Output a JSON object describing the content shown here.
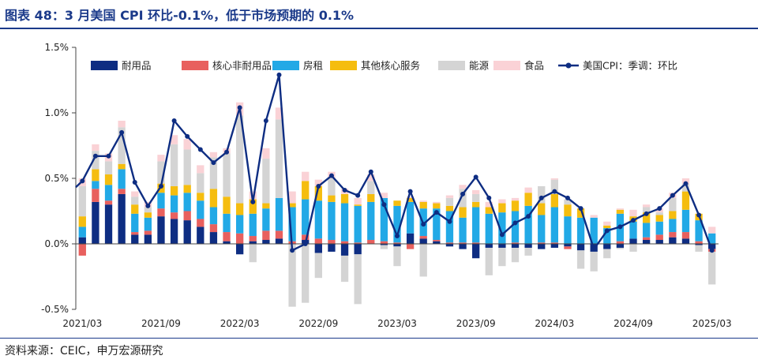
{
  "title": "图表 48：3 月美国 CPI 环比-0.1%，低于市场预期的 0.1%",
  "source": "资料来源：CEIC，申万宏源研究",
  "colors": {
    "durables": "#0e2d82",
    "nondurables": "#e8605e",
    "shelter": "#22a9e6",
    "services": "#f5bd0f",
    "energy": "#d4d4d4",
    "food": "#fad2d6",
    "cpi_line": "#0e2d82",
    "axis": "#444444"
  },
  "chart_data": {
    "type": "bar",
    "stacked": true,
    "ylabel": "",
    "ylim": [
      -0.5,
      1.5
    ],
    "yticks": [
      -0.5,
      0.0,
      0.5,
      1.0,
      1.5
    ],
    "ytick_labels": [
      "-0.5%",
      "0.0%",
      "0.5%",
      "1.0%",
      "1.5%"
    ],
    "xtick_labels": [
      "2021/03",
      "2021/09",
      "2022/03",
      "2022/09",
      "2023/03",
      "2023/09",
      "2024/03",
      "2024/09",
      "2025/03"
    ],
    "categories": [
      "2021/03",
      "2021/04",
      "2021/05",
      "2021/06",
      "2021/07",
      "2021/08",
      "2021/09",
      "2021/10",
      "2021/11",
      "2021/12",
      "2022/01",
      "2022/02",
      "2022/03",
      "2022/04",
      "2022/05",
      "2022/06",
      "2022/07",
      "2022/08",
      "2022/09",
      "2022/10",
      "2022/11",
      "2022/12",
      "2023/01",
      "2023/02",
      "2023/03",
      "2023/04",
      "2023/05",
      "2023/06",
      "2023/07",
      "2023/08",
      "2023/09",
      "2023/10",
      "2023/11",
      "2023/12",
      "2024/01",
      "2024/02",
      "2024/03",
      "2024/04",
      "2024/05",
      "2024/06",
      "2024/07",
      "2024/08",
      "2024/09",
      "2024/10",
      "2024/11",
      "2024/12",
      "2025/01",
      "2025/02",
      "2025/03"
    ],
    "legend": [
      "耐用品",
      "核心非耐用品",
      "房租",
      "其他核心服务",
      "能源",
      "食品",
      "美国CPI：季调：环比"
    ],
    "series": [
      {
        "name": "耐用品",
        "key": "durables",
        "values": [
          0.05,
          0.32,
          0.3,
          0.38,
          0.07,
          0.07,
          0.21,
          0.19,
          0.18,
          0.13,
          0.09,
          0.02,
          -0.08,
          0.02,
          0.03,
          0.04,
          0.0,
          0.03,
          -0.07,
          -0.06,
          -0.09,
          -0.08,
          0.0,
          -0.01,
          -0.02,
          0.08,
          0.04,
          0.02,
          -0.02,
          -0.04,
          -0.11,
          -0.03,
          -0.03,
          -0.03,
          -0.03,
          -0.04,
          -0.03,
          -0.02,
          -0.05,
          -0.06,
          -0.04,
          -0.03,
          0.04,
          0.03,
          0.03,
          0.05,
          0.04,
          -0.01,
          -0.04
        ]
      },
      {
        "name": "核心非耐用品",
        "key": "nondurables",
        "values": [
          -0.09,
          0.1,
          0.03,
          0.04,
          0.02,
          0.03,
          0.06,
          0.05,
          0.07,
          0.06,
          0.06,
          0.07,
          0.08,
          0.04,
          0.07,
          0.06,
          0.02,
          0.04,
          0.04,
          0.03,
          0.02,
          0.01,
          0.03,
          0.02,
          0.01,
          -0.04,
          0.02,
          0.01,
          0.01,
          0.01,
          0.01,
          0.0,
          0.0,
          0.01,
          0.0,
          0.01,
          0.01,
          -0.02,
          0.0,
          0.0,
          0.0,
          0.02,
          0.0,
          0.02,
          0.04,
          0.04,
          0.05,
          0.02,
          -0.02
        ]
      },
      {
        "name": "房租",
        "key": "shelter",
        "values": [
          0.08,
          0.06,
          0.12,
          0.15,
          0.14,
          0.1,
          0.12,
          0.13,
          0.14,
          0.14,
          0.13,
          0.14,
          0.14,
          0.17,
          0.17,
          0.25,
          0.26,
          0.27,
          0.29,
          0.29,
          0.29,
          0.28,
          0.29,
          0.33,
          0.28,
          0.24,
          0.21,
          0.24,
          0.24,
          0.19,
          0.27,
          0.23,
          0.24,
          0.24,
          0.29,
          0.21,
          0.27,
          0.21,
          0.2,
          0.2,
          0.12,
          0.21,
          0.13,
          0.11,
          0.1,
          0.1,
          0.17,
          0.16,
          0.08
        ]
      },
      {
        "name": "其他核心服务",
        "key": "services",
        "values": [
          0.08,
          0.09,
          0.08,
          0.04,
          0.07,
          0.04,
          0.07,
          0.07,
          0.06,
          0.06,
          0.14,
          0.13,
          0.09,
          0.11,
          0.04,
          0.0,
          0.03,
          0.14,
          0.11,
          0.05,
          0.07,
          0.01,
          0.06,
          0.0,
          0.04,
          0.03,
          0.05,
          0.04,
          0.04,
          0.08,
          0.04,
          0.05,
          0.07,
          0.08,
          0.1,
          0.09,
          0.1,
          0.09,
          0.07,
          0.0,
          0.02,
          0.03,
          0.04,
          0.08,
          0.05,
          0.06,
          0.14,
          0.05,
          0.0
        ]
      },
      {
        "name": "能源",
        "key": "energy",
        "values": [
          0.23,
          0.14,
          0.1,
          0.28,
          0.06,
          0.04,
          0.17,
          0.32,
          0.27,
          0.15,
          0.24,
          0.33,
          0.67,
          -0.14,
          0.34,
          0.6,
          -0.48,
          -0.45,
          -0.19,
          0.13,
          -0.2,
          -0.38,
          0.1,
          -0.03,
          -0.15,
          0.0,
          -0.25,
          0.0,
          0.06,
          0.14,
          0.06,
          -0.21,
          -0.14,
          -0.11,
          -0.06,
          0.13,
          0.11,
          0.04,
          -0.14,
          -0.15,
          -0.07,
          -0.01,
          -0.06,
          0.04,
          0.02,
          0.1,
          0.06,
          -0.05,
          -0.25
        ]
      },
      {
        "name": "食品",
        "key": "food",
        "values": [
          0.06,
          0.05,
          0.06,
          0.05,
          0.04,
          0.04,
          0.05,
          0.07,
          0.08,
          0.06,
          0.04,
          0.04,
          0.1,
          0.06,
          0.08,
          0.09,
          0.09,
          0.07,
          0.05,
          0.05,
          0.04,
          0.05,
          0.05,
          0.04,
          0.0,
          0.01,
          0.01,
          0.01,
          0.02,
          0.03,
          0.03,
          0.04,
          0.03,
          0.02,
          0.04,
          0.0,
          0.01,
          0.0,
          0.0,
          0.02,
          0.03,
          0.01,
          0.05,
          0.02,
          0.03,
          0.04,
          0.04,
          0.0,
          0.05
        ]
      },
      {
        "name": "美国CPI：季调：环比",
        "key": "cpi_line",
        "type": "line",
        "values": [
          0.48,
          0.67,
          0.67,
          0.85,
          0.47,
          0.29,
          0.44,
          0.94,
          0.82,
          0.72,
          0.62,
          0.7,
          1.04,
          0.32,
          0.94,
          1.29,
          -0.05,
          0.0,
          0.44,
          0.52,
          0.41,
          0.37,
          0.55,
          0.3,
          0.06,
          0.4,
          0.15,
          0.24,
          0.17,
          0.38,
          0.51,
          0.35,
          0.07,
          0.16,
          0.21,
          0.35,
          0.4,
          0.35,
          0.27,
          -0.04,
          0.1,
          0.13,
          0.18,
          0.23,
          0.27,
          0.37,
          0.46,
          0.22,
          -0.05
        ]
      }
    ]
  }
}
